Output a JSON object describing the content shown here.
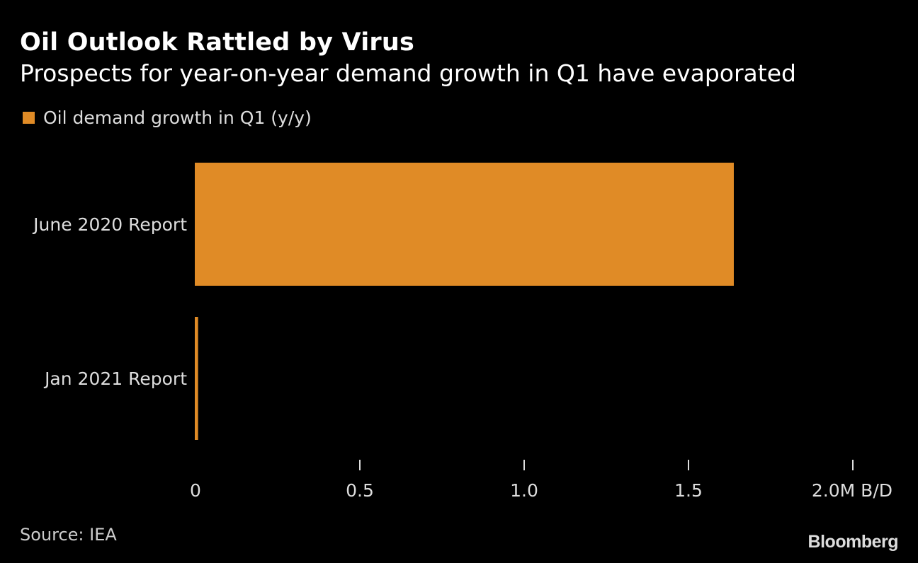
{
  "chart_data": {
    "type": "bar",
    "orientation": "horizontal",
    "title": "Oil Outlook Rattled by Virus",
    "subtitle": "Prospects for year-on-year demand growth in Q1 have evaporated",
    "categories": [
      "June 2020 Report",
      "Jan 2021 Report"
    ],
    "series": [
      {
        "name": "Oil demand growth in Q1 (y/y)",
        "values": [
          1.64,
          0.01
        ],
        "color": "#e08b26"
      }
    ],
    "xlabel": "",
    "ylabel": "",
    "xlim": [
      0,
      2.0
    ],
    "xticks": [
      0,
      0.5,
      1.0,
      1.5,
      2.0
    ],
    "xtick_labels": [
      "0",
      "0.5",
      "1.0",
      "1.5",
      "2.0M B/D"
    ],
    "grid": false,
    "legend_position": "top-left"
  },
  "footer": {
    "source": "Source: IEA",
    "brand": "Bloomberg"
  },
  "colors": {
    "background": "#000000",
    "bar": "#e08b26",
    "text": "#ffffff"
  }
}
